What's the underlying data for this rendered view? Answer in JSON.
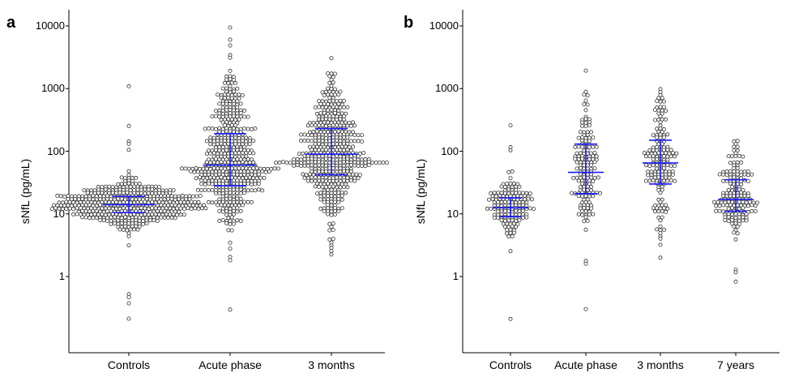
{
  "chart_data": [
    {
      "type": "scatter",
      "subtype": "beeswarm",
      "panel": "a",
      "ylabel": "sNfL (pg/mL)",
      "yscale": "log",
      "ylim": [
        0.07,
        15000
      ],
      "yticks": [
        1,
        10,
        100,
        1000,
        10000
      ],
      "ytick_labels": [
        "1",
        "10",
        "100",
        "1000",
        "10000"
      ],
      "categories": [
        "Controls",
        "Acute phase",
        "3 months"
      ],
      "groups": [
        {
          "n": 420,
          "median": 14,
          "q1": 10.5,
          "q3": 19,
          "min": 1.9,
          "max": 70,
          "outliers": [
            0.2,
            0.38,
            0.44,
            0.52,
            100,
            130,
            150,
            250,
            1100
          ]
        },
        {
          "n": 470,
          "median": 60,
          "q1": 28,
          "q3": 190,
          "min": 5,
          "max": 2000,
          "outliers": [
            0.3,
            1.8,
            2.0,
            2.8,
            3.5,
            3000,
            3600,
            5000,
            6000,
            9000
          ]
        },
        {
          "n": 470,
          "median": 90,
          "q1": 42,
          "q3": 230,
          "min": 3,
          "max": 1800,
          "outliers": [
            2.2,
            2.6,
            2.8,
            3000
          ]
        }
      ],
      "stat_color": "#1a1aff",
      "point_stroke": "#333333"
    },
    {
      "type": "scatter",
      "subtype": "beeswarm",
      "panel": "b",
      "ylabel": "sNfL (pg/mL)",
      "yscale": "log",
      "ylim": [
        0.07,
        15000
      ],
      "yticks": [
        1,
        10,
        100,
        1000,
        10000
      ],
      "ytick_labels": [
        "1",
        "10",
        "100",
        "1000",
        "10000"
      ],
      "categories": [
        "Controls",
        "Acute phase",
        "3 months",
        "7 years"
      ],
      "groups": [
        {
          "n": 140,
          "median": 12.5,
          "q1": 9,
          "q3": 18,
          "min": 1.9,
          "max": 70,
          "outliers": [
            0.2,
            100,
            110,
            250
          ]
        },
        {
          "n": 150,
          "median": 46,
          "q1": 21,
          "q3": 130,
          "min": 5,
          "max": 900,
          "outliers": [
            0.3,
            1.6,
            1.8,
            2000
          ]
        },
        {
          "n": 160,
          "median": 65,
          "q1": 30,
          "q3": 150,
          "min": 4,
          "max": 1200,
          "outliers": [
            2.1,
            3.2
          ]
        },
        {
          "n": 160,
          "median": 17,
          "q1": 11,
          "q3": 35,
          "min": 2.5,
          "max": 180,
          "outliers": [
            0.8,
            1.1,
            1.3
          ]
        }
      ],
      "stat_color": "#1a1aff",
      "point_stroke": "#333333"
    }
  ]
}
